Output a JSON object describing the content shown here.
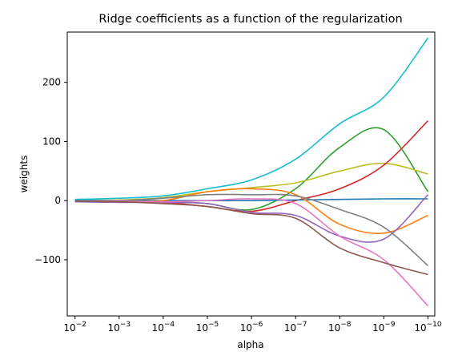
{
  "chart_data": {
    "type": "line",
    "title": "Ridge coefficients as a function of the regularization",
    "xlabel": "alpha",
    "ylabel": "weights",
    "x_scale": "log-reversed",
    "x_ticks": [
      {
        "base": "10",
        "exp": "−2",
        "value": 0.01
      },
      {
        "base": "10",
        "exp": "−3",
        "value": 0.001
      },
      {
        "base": "10",
        "exp": "−4",
        "value": 0.0001
      },
      {
        "base": "10",
        "exp": "−5",
        "value": 1e-05
      },
      {
        "base": "10",
        "exp": "−6",
        "value": 1e-06
      },
      {
        "base": "10",
        "exp": "−7",
        "value": 1e-07
      },
      {
        "base": "10",
        "exp": "−8",
        "value": 1e-08
      },
      {
        "base": "10",
        "exp": "−9",
        "value": 1e-09
      },
      {
        "base": "10",
        "exp": "−10",
        "value": 1e-10
      }
    ],
    "y_ticks": [
      {
        "label": "200",
        "value": 200
      },
      {
        "label": "100",
        "value": 100
      },
      {
        "label": "0",
        "value": 0
      },
      {
        "label": "−100",
        "value": -100
      }
    ],
    "xlim": [
      0.015,
      7e-11
    ],
    "ylim": [
      -195,
      285
    ],
    "grid": false,
    "x": [
      0.01,
      0.001,
      0.0001,
      1e-05,
      1e-06,
      1e-07,
      1e-08,
      1e-09,
      1e-10
    ],
    "series": [
      {
        "color": "#17becf",
        "values": [
          2,
          4,
          8,
          20,
          35,
          70,
          130,
          175,
          275
        ]
      },
      {
        "color": "#2ca02c",
        "values": [
          0,
          0,
          -2,
          -5,
          -15,
          20,
          90,
          120,
          15
        ]
      },
      {
        "color": "#bcbd22",
        "values": [
          0,
          1,
          5,
          15,
          22,
          30,
          50,
          63,
          45
        ]
      },
      {
        "color": "#d62728",
        "values": [
          -1,
          -2,
          -3,
          -10,
          -18,
          0,
          20,
          60,
          135
        ]
      },
      {
        "color": "#1f77b4",
        "values": [
          0,
          0,
          0,
          0,
          0,
          1,
          2,
          3,
          3
        ]
      },
      {
        "color": "#ff7f0e",
        "values": [
          -1,
          -1,
          0,
          15,
          20,
          10,
          -40,
          -55,
          -25
        ]
      },
      {
        "color": "#9467bd",
        "values": [
          -2,
          -3,
          -3,
          -5,
          -20,
          -25,
          -60,
          -65,
          10
        ]
      },
      {
        "color": "#7f7f7f",
        "values": [
          -1,
          0,
          4,
          10,
          10,
          8,
          -15,
          -45,
          -110
        ]
      },
      {
        "color": "#e377c2",
        "values": [
          -1,
          -1,
          -2,
          0,
          3,
          -5,
          -60,
          -100,
          -178
        ]
      },
      {
        "color": "#8c564b",
        "values": [
          -1,
          -2,
          -5,
          -10,
          -22,
          -30,
          -80,
          -105,
          -125
        ]
      }
    ]
  }
}
